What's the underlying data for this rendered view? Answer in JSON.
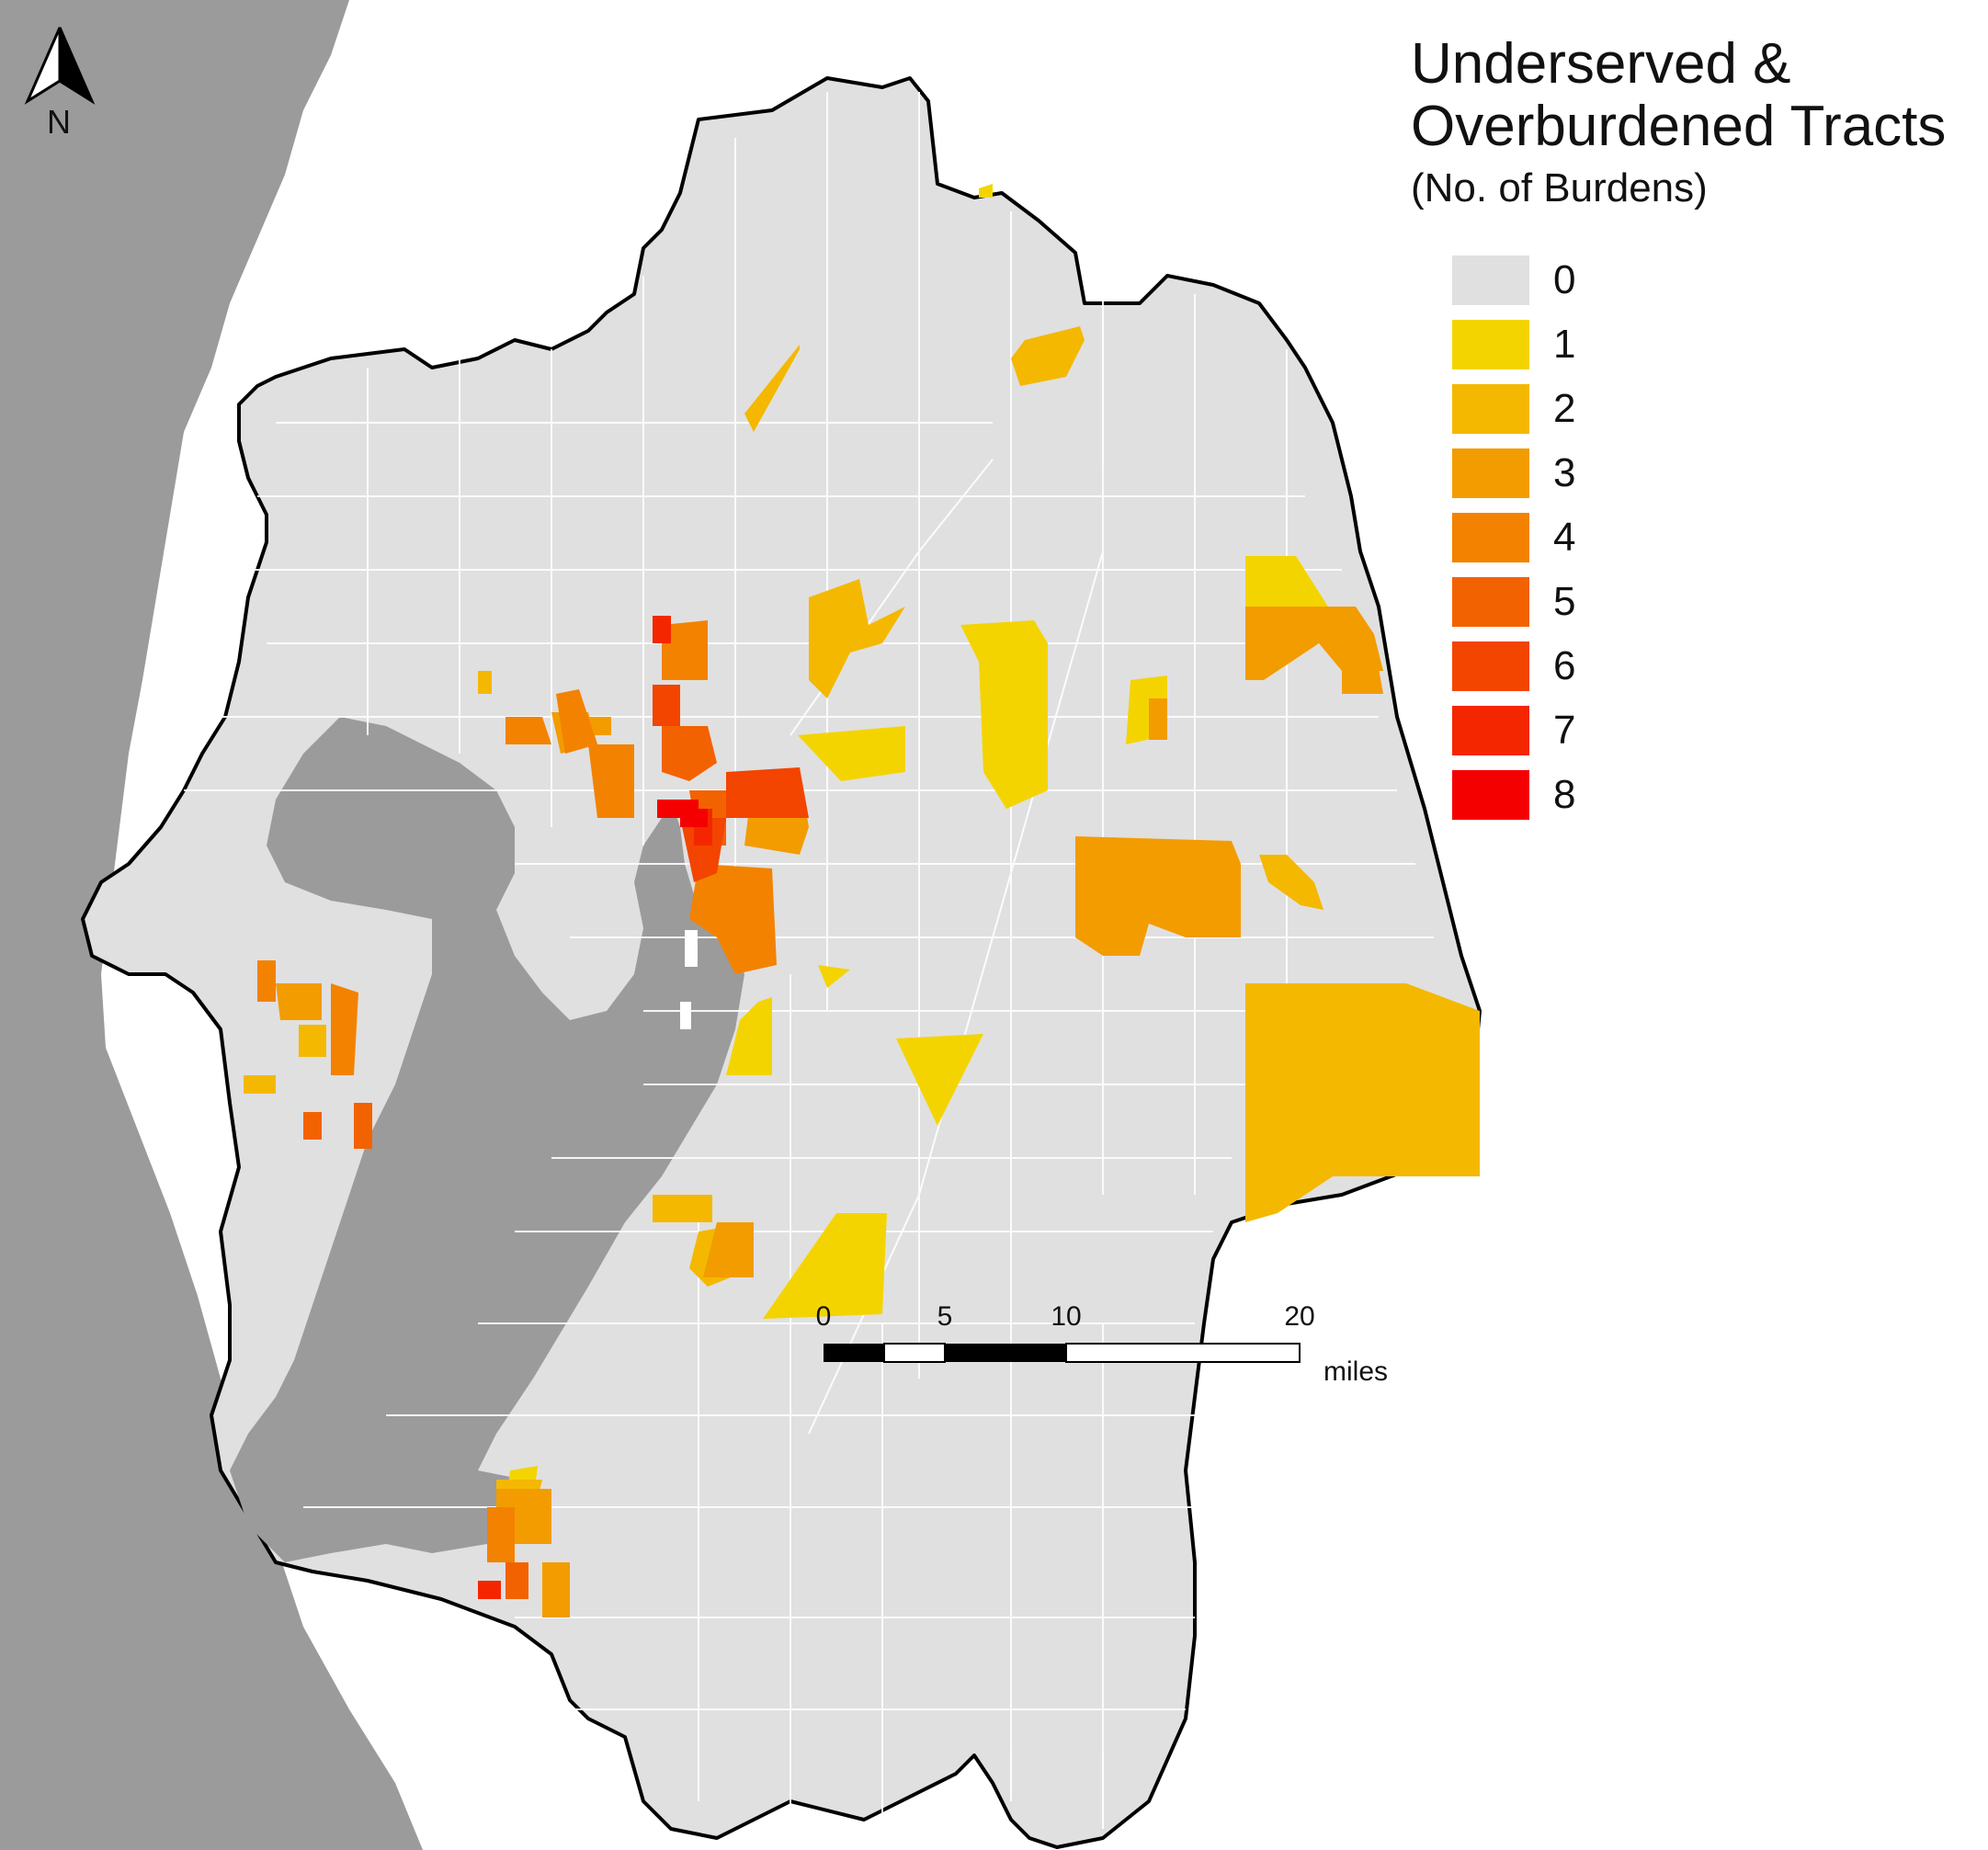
{
  "legend": {
    "title_line1": "Underserved &",
    "title_line2": "Overburdened Tracts",
    "subtitle": "(No. of Burdens)",
    "classes": [
      {
        "label": "0",
        "color": "#e0e0e0"
      },
      {
        "label": "1",
        "color": "#f4d400"
      },
      {
        "label": "2",
        "color": "#f4b800"
      },
      {
        "label": "3",
        "color": "#f29c00"
      },
      {
        "label": "4",
        "color": "#f38200"
      },
      {
        "label": "5",
        "color": "#f36200"
      },
      {
        "label": "6",
        "color": "#f34400"
      },
      {
        "label": "7",
        "color": "#f42600"
      },
      {
        "label": "8",
        "color": "#f50000"
      }
    ]
  },
  "north_arrow": {
    "label": "N"
  },
  "scale_bar": {
    "ticks": [
      "0",
      "5",
      "10",
      "20"
    ],
    "unit": "miles"
  },
  "colors": {
    "water": "#9b9b9b",
    "land_region": "#e0e0e0",
    "boundary": "#000000",
    "tract_lines": "#ffffff"
  }
}
